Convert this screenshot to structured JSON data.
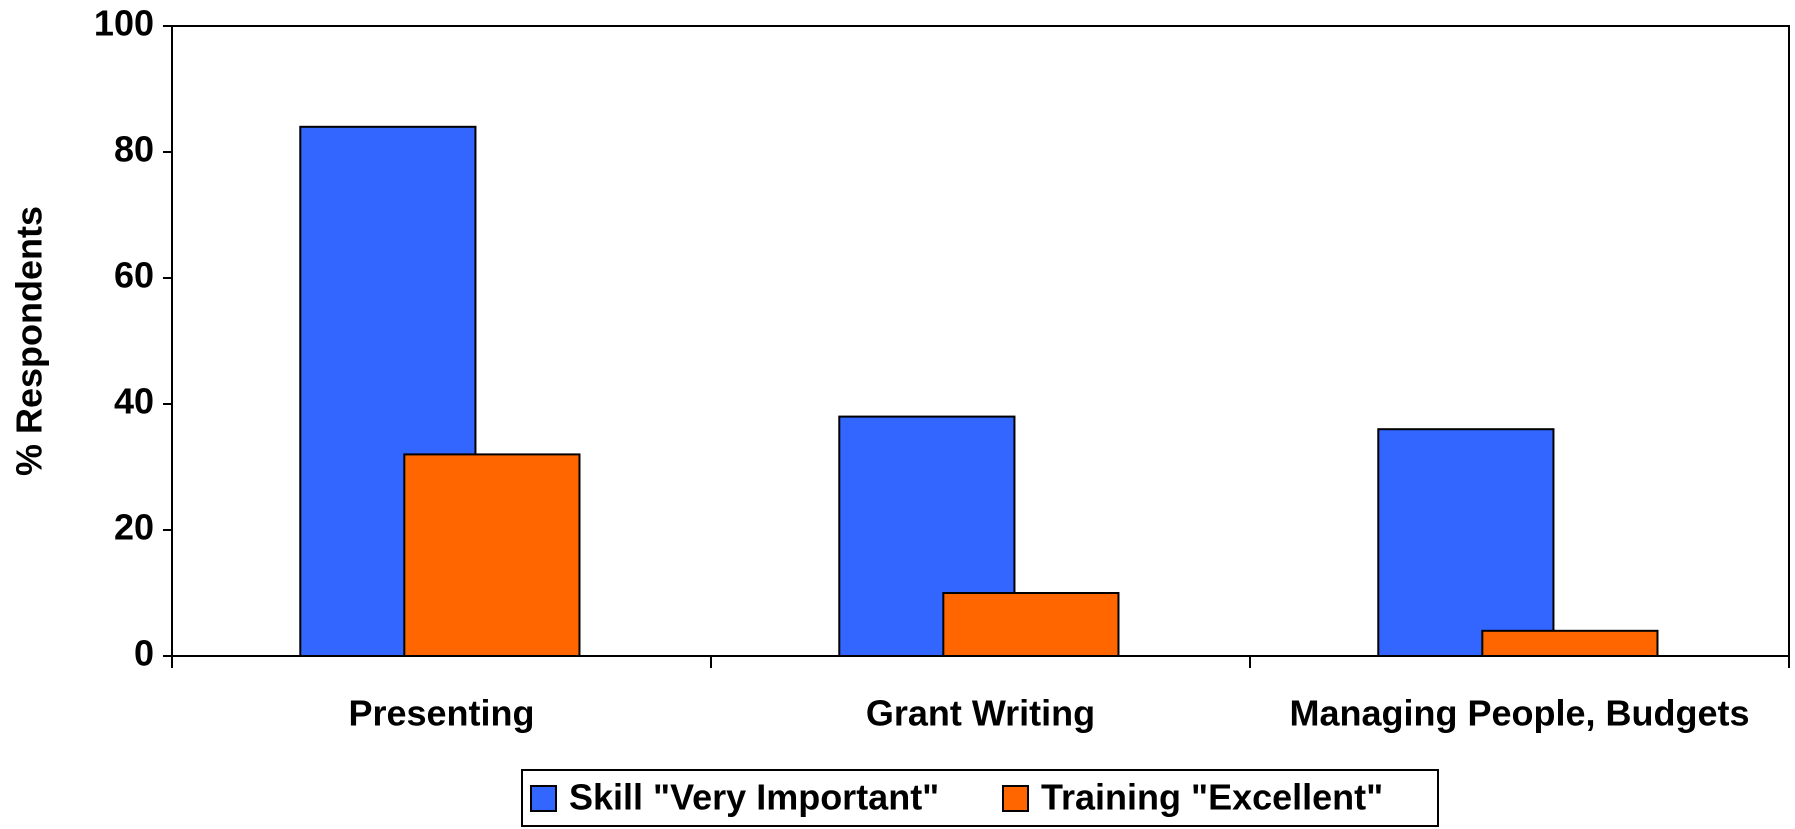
{
  "chart_data": {
    "type": "bar",
    "y_label": "% Respondents",
    "categories": [
      "Presenting",
      "Grant Writing",
      "Managing People, Budgets"
    ],
    "series": [
      {
        "name": "Skill \"Very Important\"",
        "color": "#3366ff",
        "values": [
          84,
          38,
          36
        ]
      },
      {
        "name": "Training \"Excellent\"",
        "color": "#ff6600",
        "values": [
          32,
          10,
          4
        ]
      }
    ],
    "ylim": [
      0,
      100
    ],
    "yticks": [
      0,
      20,
      40,
      60,
      80,
      100
    ],
    "grid": false,
    "legend": "bottom"
  }
}
